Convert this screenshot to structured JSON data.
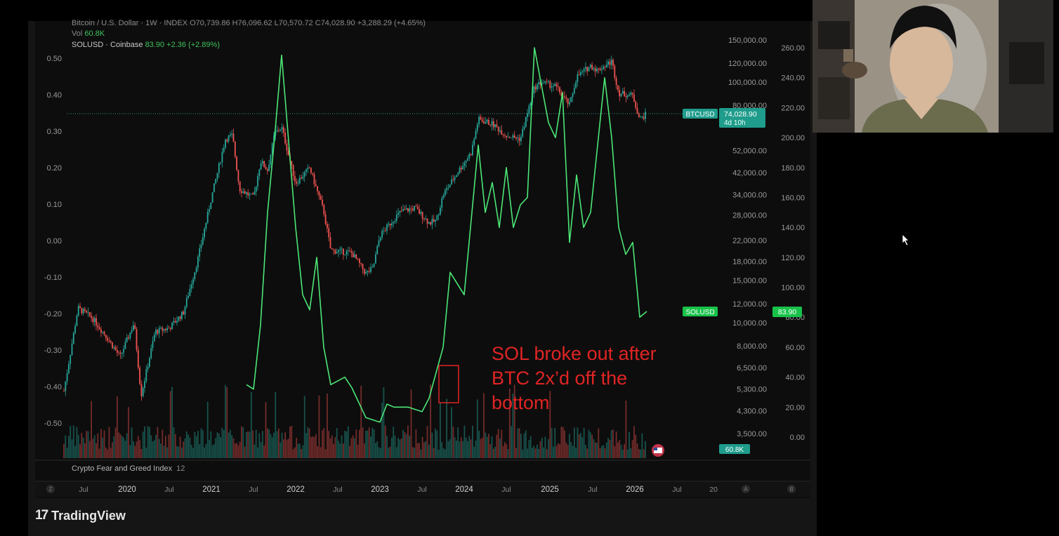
{
  "legend": {
    "btc_line": "Bitcoin / U.S. Dollar · 1W · INDEX",
    "btc_o": "O70,739.86",
    "btc_h": "H76,096.62",
    "btc_l": "L70,570.72",
    "btc_c": "C74,028.90",
    "btc_chg": "+3,288.29 (+4.65%)",
    "vol_label": "Vol",
    "vol_value": "60.8K",
    "sol_label": "SOLUSD · Coinbase",
    "sol_value": "83.90",
    "sol_chg": "+2.36 (+2.89%)"
  },
  "sub_indicator": {
    "label": "Crypto Fear and Greed Index",
    "value": "12"
  },
  "annotation": {
    "lines": [
      "SOL broke out after",
      "BTC 2x’d off the",
      "bottom"
    ],
    "color": "#e02424"
  },
  "badges": {
    "btc_tag": "BTCUSD",
    "btc_price": "74,028.90",
    "btc_countdown": "4d 10h",
    "sol_tag": "SOLUSD",
    "sol_price": "83.90",
    "vol_tag": "60.8K"
  },
  "watermark": "TradingView",
  "colors": {
    "bull": "#26a69a",
    "bear": "#ef5350",
    "sol": "#4ce676",
    "annotation": "#e02424",
    "btc_badge": "#1f9c8c",
    "sol_badge": "#18c24a"
  },
  "chart_data": {
    "type": "line",
    "x_ticks": [
      "Jul",
      "2020",
      "Jul",
      "2021",
      "Jul",
      "2022",
      "Jul",
      "2023",
      "Jul",
      "2024",
      "Jul",
      "2025",
      "Jul",
      "2026",
      "Jul",
      "20"
    ],
    "left_axis_ticks": [
      "0.50",
      "0.40",
      "0.30",
      "0.20",
      "0.10",
      "0.00",
      "-0.10",
      "-0.20",
      "-0.30",
      "-0.40",
      "-0.50"
    ],
    "btc_axis_ticks": [
      "150,000.00",
      "120,000.00",
      "100,000.00",
      "80,000.00",
      "52,000.00",
      "42,000.00",
      "34,000.00",
      "28,000.00",
      "22,000.00",
      "18,000.00",
      "15,000.00",
      "12,000.00",
      "10,000.00",
      "8,000.00",
      "6,500.00",
      "5,300.00",
      "4,300.00",
      "3,500.00"
    ],
    "btc_axis_scale": "log",
    "sol_axis_ticks": [
      "260.00",
      "240.00",
      "220.00",
      "200.00",
      "180.00",
      "160.00",
      "140.00",
      "120.00",
      "100.00",
      "80.00",
      "60.00",
      "40.00",
      "20.00",
      "0.00"
    ],
    "series": [
      {
        "name": "BTCUSD",
        "axis": "btc",
        "x": [
          "2019-04",
          "2019-06",
          "2019-08",
          "2019-10",
          "2019-12",
          "2020-02",
          "2020-03",
          "2020-05",
          "2020-07",
          "2020-09",
          "2020-11",
          "2021-01",
          "2021-03",
          "2021-04",
          "2021-05",
          "2021-07",
          "2021-08",
          "2021-09",
          "2021-10",
          "2021-11",
          "2022-01",
          "2022-03",
          "2022-05",
          "2022-06",
          "2022-09",
          "2022-11",
          "2022-12",
          "2023-01",
          "2023-03",
          "2023-04",
          "2023-06",
          "2023-08",
          "2023-09",
          "2023-10",
          "2023-12",
          "2024-02",
          "2024-03",
          "2024-05",
          "2024-07",
          "2024-09",
          "2024-11",
          "2024-12",
          "2025-02",
          "2025-04",
          "2025-05",
          "2025-07",
          "2025-08",
          "2025-10",
          "2025-11",
          "2026-01",
          "2026-02",
          "2026-03"
        ],
        "y": [
          5200,
          11500,
          10500,
          8800,
          7200,
          10000,
          5000,
          9200,
          9500,
          11000,
          18000,
          33000,
          58000,
          60000,
          36000,
          33000,
          47000,
          43000,
          61000,
          65000,
          38000,
          44000,
          29000,
          20000,
          19500,
          16000,
          16800,
          23000,
          27000,
          29000,
          30000,
          26000,
          26500,
          34000,
          42000,
          51000,
          70000,
          67000,
          60000,
          58000,
          95000,
          100000,
          96000,
          80000,
          105000,
          117000,
          112000,
          122000,
          90000,
          88000,
          70000,
          74000
        ]
      },
      {
        "name": "SOLUSD",
        "axis": "sol",
        "x": [
          "2021-06",
          "2021-07",
          "2021-08",
          "2021-09",
          "2021-10",
          "2021-11",
          "2022-01",
          "2022-02",
          "2022-03",
          "2022-04",
          "2022-05",
          "2022-06",
          "2022-08",
          "2022-09",
          "2022-11",
          "2023-01",
          "2023-02",
          "2023-03",
          "2023-05",
          "2023-07",
          "2023-08",
          "2023-10",
          "2023-11",
          "2024-01",
          "2024-03",
          "2024-04",
          "2024-05",
          "2024-06",
          "2024-07",
          "2024-08",
          "2024-09",
          "2024-10",
          "2024-11",
          "2025-01",
          "2025-02",
          "2025-03",
          "2025-04",
          "2025-05",
          "2025-06",
          "2025-07",
          "2025-09",
          "2025-10",
          "2025-11",
          "2025-12",
          "2026-01",
          "2026-02",
          "2026-03"
        ],
        "y": [
          35,
          32,
          75,
          150,
          200,
          255,
          140,
          95,
          85,
          120,
          60,
          35,
          40,
          33,
          13,
          10,
          22,
          20,
          20,
          17,
          26,
          60,
          110,
          95,
          195,
          150,
          170,
          140,
          180,
          140,
          155,
          160,
          260,
          210,
          200,
          230,
          130,
          175,
          140,
          150,
          240,
          200,
          140,
          122,
          130,
          80,
          83.9
        ]
      }
    ]
  }
}
